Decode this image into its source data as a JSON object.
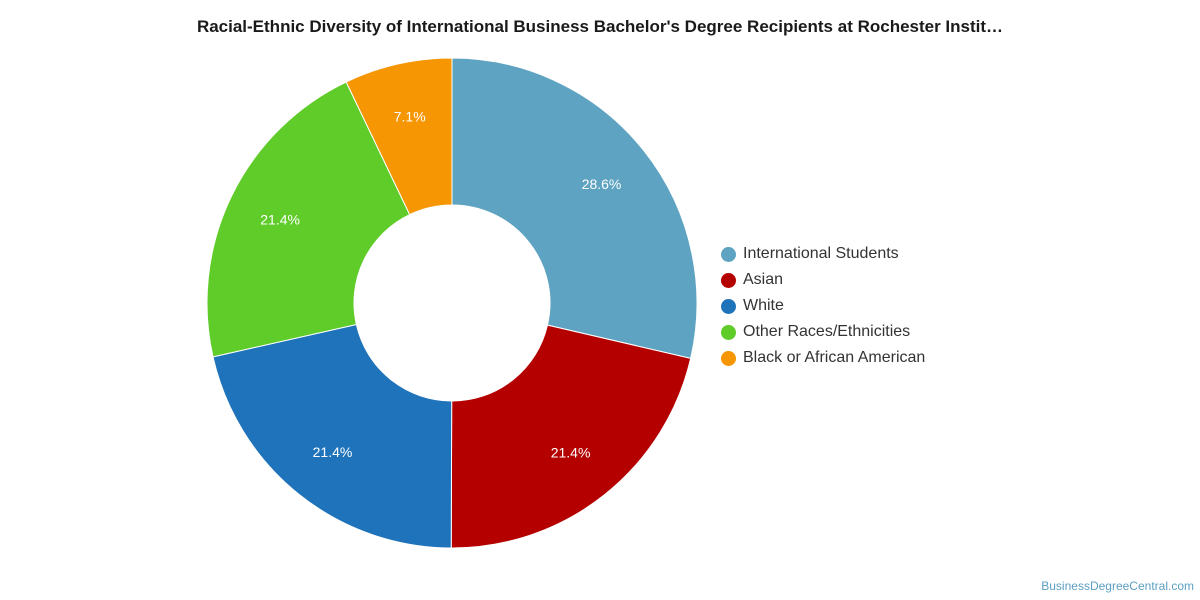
{
  "chart_data": {
    "type": "pie",
    "title": "Racial-Ethnic Diversity of International Business Bachelor's Degree Recipients at Rochester Instit…",
    "legend_position": "right",
    "donut": true,
    "slices": [
      {
        "name": "International Students",
        "value": 28.6,
        "label": "28.6%",
        "color": "#5ea3c1"
      },
      {
        "name": "Asian",
        "value": 21.4,
        "label": "21.4%",
        "color": "#b50000"
      },
      {
        "name": "White",
        "value": 21.4,
        "label": "21.4%",
        "color": "#1f73bb"
      },
      {
        "name": "Other Races/Ethnicities",
        "value": 21.4,
        "label": "21.4%",
        "color": "#5fcc29"
      },
      {
        "name": "Black or African American",
        "value": 7.1,
        "label": "7.1%",
        "color": "#f59602"
      }
    ]
  },
  "source_text": "BusinessDegreeCentral.com"
}
